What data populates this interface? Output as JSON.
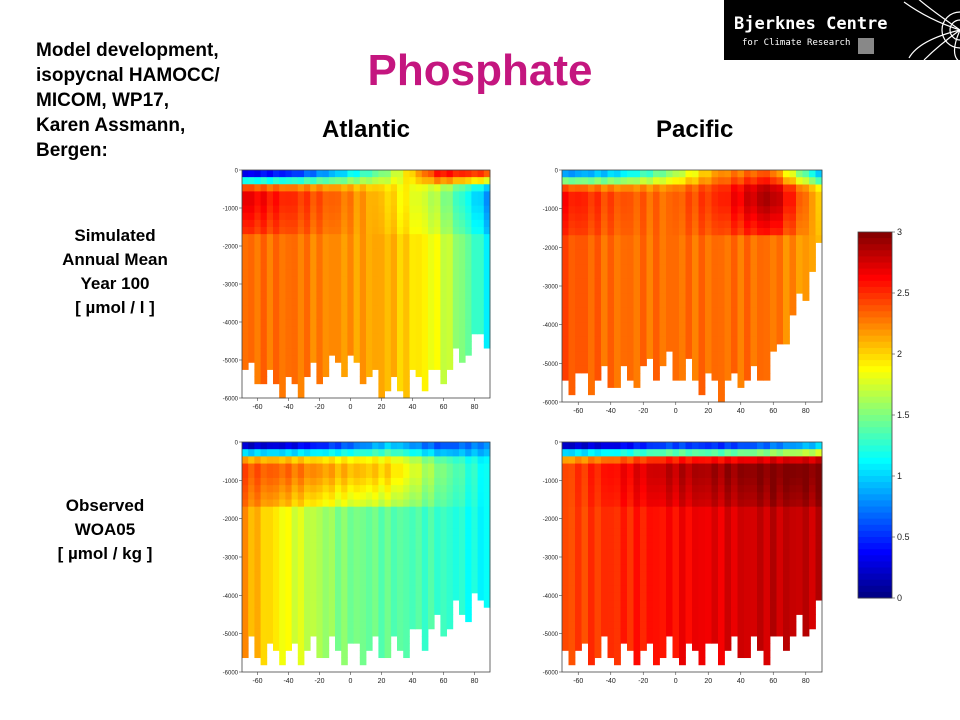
{
  "slide": {
    "title": "Phosphate",
    "credit": [
      "Model development,",
      "isopycnal HAMOCC/",
      "MICOM, WP17,",
      "Karen Assmann,",
      "Bergen:"
    ],
    "columns": {
      "atlantic": "Atlantic",
      "pacific": "Pacific"
    },
    "rows": {
      "simulated": [
        "Simulated",
        "Annual Mean",
        "Year 100",
        "[ µmol / l ]"
      ],
      "observed": [
        "Observed",
        "WOA05",
        "[ µmol / kg ]"
      ]
    },
    "logo": {
      "line1": "Bjerknes Centre",
      "line2": "for Climate Research"
    }
  },
  "chart_data": [
    {
      "type": "heatmap",
      "panel": "simulated-atlantic",
      "x_ticks": [
        -60,
        -40,
        -20,
        0,
        20,
        40,
        60,
        80
      ],
      "y_ticks": [
        0,
        -1000,
        -2000,
        -3000,
        -4000,
        -5000,
        -6000
      ],
      "xlim": [
        -70,
        90
      ],
      "ylim": [
        -6000,
        0
      ],
      "surface": [
        0.3,
        0.5,
        1.0,
        1.6,
        2.6,
        2.4
      ],
      "upper": [
        2.7,
        2.5,
        2.3,
        2.0,
        1.6,
        0.8
      ],
      "deep": [
        2.3,
        2.3,
        2.2,
        2.1,
        1.8,
        1.1
      ],
      "bottom_depth": [
        -5200,
        -5800,
        -5000,
        -5800,
        -5400,
        -4200
      ]
    },
    {
      "type": "heatmap",
      "panel": "simulated-pacific",
      "x_ticks": [
        -60,
        -40,
        -20,
        0,
        20,
        40,
        60,
        80
      ],
      "y_ticks": [
        0,
        -1000,
        -2000,
        -3000,
        -4000,
        -5000,
        -6000
      ],
      "xlim": [
        -70,
        90
      ],
      "ylim": [
        -6000,
        0
      ],
      "surface": [
        0.8,
        1.0,
        1.5,
        2.2,
        2.4,
        0.9
      ],
      "upper": [
        2.6,
        2.4,
        2.3,
        2.5,
        2.9,
        2.0
      ],
      "deep": [
        2.4,
        2.3,
        2.3,
        2.3,
        2.3,
        2.1
      ],
      "bottom_depth": [
        -5400,
        -5500,
        -5000,
        -5600,
        -5200,
        -2000
      ]
    },
    {
      "type": "heatmap",
      "panel": "observed-atlantic",
      "x_ticks": [
        -60,
        -40,
        -20,
        0,
        20,
        40,
        60,
        80
      ],
      "y_ticks": [
        0,
        -1000,
        -2000,
        -3000,
        -4000,
        -5000,
        -6000
      ],
      "xlim": [
        -70,
        90
      ],
      "ylim": [
        -6000,
        0
      ],
      "surface": [
        0.2,
        0.3,
        0.6,
        1.0,
        0.6,
        0.8
      ],
      "upper": [
        2.4,
        2.3,
        2.1,
        2.0,
        1.5,
        1.1
      ],
      "deep": [
        2.2,
        1.8,
        1.5,
        1.4,
        1.3,
        1.1
      ],
      "bottom_depth": [
        -5500,
        -5500,
        -5400,
        -5500,
        -4800,
        -4000
      ]
    },
    {
      "type": "heatmap",
      "panel": "observed-pacific",
      "x_ticks": [
        -60,
        -40,
        -20,
        0,
        20,
        40,
        60,
        80
      ],
      "y_ticks": [
        0,
        -1000,
        -2000,
        -3000,
        -4000,
        -5000,
        -6000
      ],
      "xlim": [
        -70,
        90
      ],
      "ylim": [
        -6000,
        0
      ],
      "surface": [
        0.2,
        0.3,
        0.6,
        0.5,
        0.7,
        1.0
      ],
      "upper": [
        2.4,
        2.6,
        2.8,
        2.9,
        3.0,
        3.0
      ],
      "deep": [
        2.4,
        2.5,
        2.6,
        2.7,
        2.8,
        2.8
      ],
      "bottom_depth": [
        -5500,
        -5500,
        -5500,
        -5500,
        -5400,
        -4500
      ]
    }
  ],
  "colorbar": {
    "min": 0,
    "max": 3,
    "ticks": [
      0,
      0.5,
      1,
      1.5,
      2,
      2.5,
      3
    ],
    "tick_labels": [
      "0",
      "0.5",
      "1",
      "1.5",
      "2",
      "2.5",
      "3"
    ]
  }
}
